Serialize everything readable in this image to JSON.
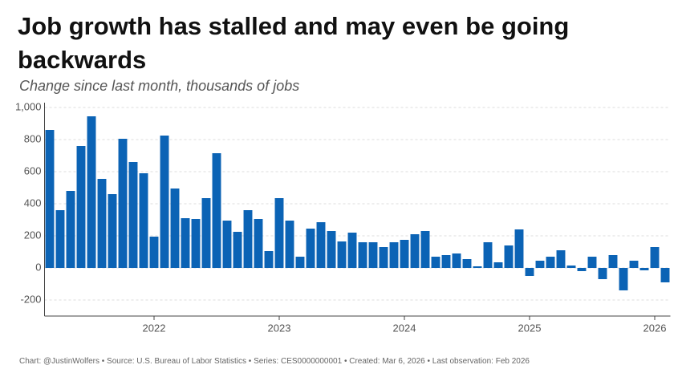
{
  "chart_data": {
    "type": "bar",
    "title": "Job growth has stalled and may even be going backwards",
    "subtitle": "Change since last month, thousands of jobs",
    "source": "Chart: @JustinWolfers • Source: U.S. Bureau of Labor Statistics • Series: CES0000000001 • Created: Mar 6, 2026 • Last observation: Feb 2026",
    "categories": [
      null,
      null,
      null,
      null,
      null,
      null,
      null,
      null,
      null,
      null,
      "2022",
      null,
      null,
      null,
      null,
      null,
      null,
      null,
      null,
      null,
      null,
      null,
      "2023",
      null,
      null,
      null,
      null,
      null,
      null,
      null,
      null,
      null,
      null,
      null,
      "2024",
      null,
      null,
      null,
      null,
      null,
      null,
      null,
      null,
      null,
      null,
      null,
      "2025",
      null,
      null,
      null,
      null,
      null,
      null,
      null,
      null,
      null,
      null,
      null,
      "2026",
      null
    ],
    "values": [
      860,
      360,
      480,
      760,
      945,
      555,
      460,
      805,
      660,
      590,
      195,
      825,
      495,
      310,
      305,
      435,
      715,
      295,
      225,
      360,
      305,
      105,
      435,
      295,
      70,
      245,
      285,
      230,
      165,
      220,
      160,
      160,
      130,
      160,
      175,
      210,
      230,
      70,
      80,
      90,
      55,
      10,
      160,
      35,
      140,
      240,
      -50,
      45,
      70,
      110,
      15,
      -20,
      70,
      -70,
      80,
      -140,
      45,
      -15,
      130,
      -90
    ],
    "color": "#0b63b5",
    "ylim": [
      -300,
      1000
    ],
    "yticks": [
      -200,
      0,
      200,
      400,
      600,
      800,
      {
        "value": 1000,
        "label": "1,000"
      }
    ],
    "grid": true
  }
}
